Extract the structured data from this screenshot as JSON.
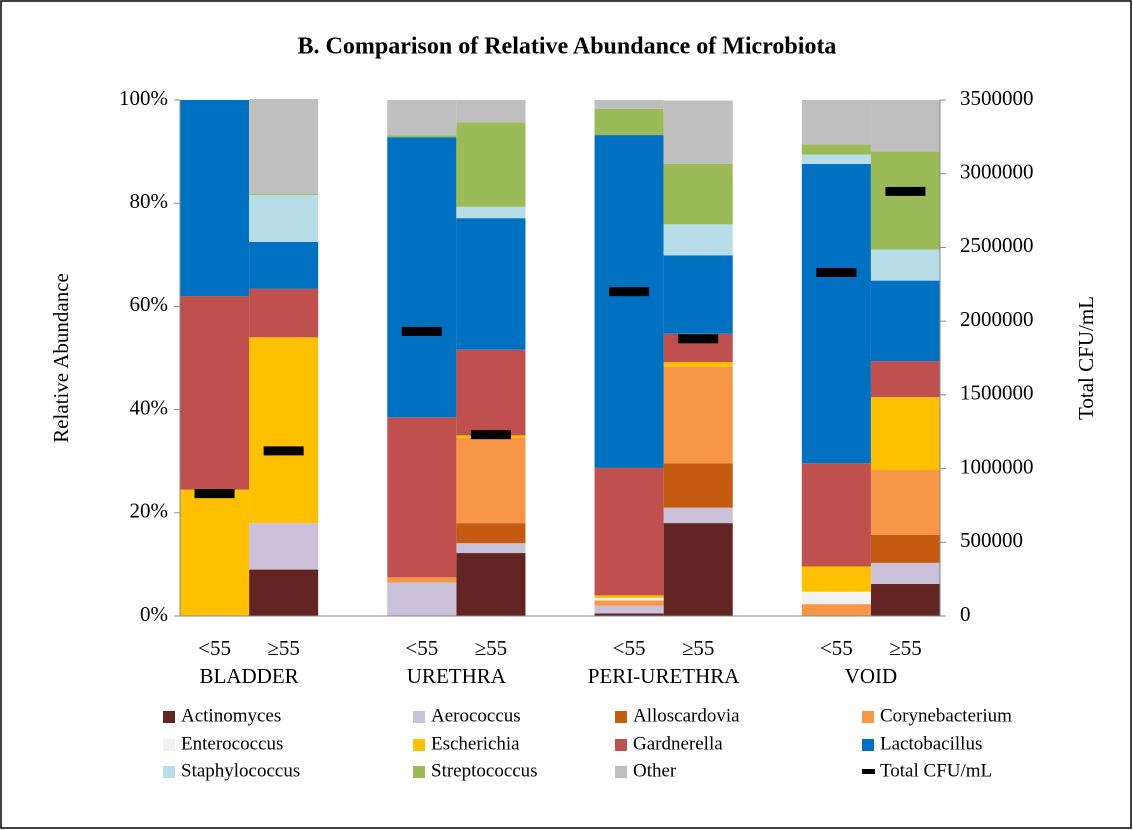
{
  "chart_data": {
    "type": "bar",
    "stacked": true,
    "title": "B. Comparison of Relative Abundance of Microbiota",
    "ylabel": "Relative Abundance",
    "y2label": "Total CFU/mL",
    "categories": [
      "<55",
      "≥55",
      null,
      "<55",
      "≥55",
      null,
      "<55",
      "≥55",
      null,
      "<55",
      "≥55"
    ],
    "groups": [
      "BLADDER",
      "URETHRA",
      "PERI-URETHRA",
      "VOID"
    ],
    "ylim": [
      0,
      100
    ],
    "yticks": [
      {
        "value": 0,
        "label": "0%"
      },
      {
        "value": 20,
        "label": "20%"
      },
      {
        "value": 40,
        "label": "40%"
      },
      {
        "value": 60,
        "label": "60%"
      },
      {
        "value": 80,
        "label": "80%"
      },
      {
        "value": 100,
        "label": "100%"
      }
    ],
    "y2lim": [
      0,
      3500000
    ],
    "y2ticks": [
      0,
      500000,
      1000000,
      1500000,
      2000000,
      2500000,
      3000000,
      3500000
    ],
    "legend": "bottom",
    "series": [
      {
        "name": "Actinomyces",
        "color": "#632523",
        "values": [
          0,
          9,
          null,
          0,
          12.2,
          null,
          0.5,
          18,
          null,
          0,
          6.2
        ]
      },
      {
        "name": "Aerococcus",
        "color": "#ccc1da",
        "values": [
          0,
          9,
          null,
          6.5,
          1.9,
          null,
          1.5,
          3,
          null,
          0,
          4.1
        ]
      },
      {
        "name": "Alloscardovia",
        "color": "#c55a11",
        "values": [
          0,
          0,
          null,
          0,
          3.9,
          null,
          0,
          8.6,
          null,
          0,
          5.4
        ]
      },
      {
        "name": "Corynebacterium",
        "color": "#f79646",
        "values": [
          0,
          0,
          null,
          1,
          16.5,
          null,
          1,
          18.7,
          null,
          2.3,
          12.6
        ]
      },
      {
        "name": "Enterococcus",
        "color": "#f2f2f2",
        "values": [
          0,
          0,
          null,
          0,
          0,
          null,
          0.5,
          0,
          null,
          2.4,
          0
        ]
      },
      {
        "name": "Escherichia",
        "color": "#ffc000",
        "values": [
          24.5,
          36,
          null,
          0,
          0.5,
          null,
          0.5,
          0.9,
          null,
          4.9,
          14.1
        ]
      },
      {
        "name": "Gardnerella",
        "color": "#c0504d",
        "values": [
          37.5,
          9.4,
          null,
          31,
          16.6,
          null,
          24.7,
          5.5,
          null,
          20,
          7
        ]
      },
      {
        "name": "Lactobacillus",
        "color": "#0070c0",
        "values": [
          38,
          9.1,
          null,
          54.3,
          25.5,
          null,
          64.5,
          15.2,
          null,
          58,
          15.6
        ]
      },
      {
        "name": "Staphylococcus",
        "color": "#b7dee8",
        "values": [
          0,
          9.1,
          null,
          0,
          2.2,
          null,
          0,
          6,
          null,
          1.8,
          6
        ]
      },
      {
        "name": "Streptococcus",
        "color": "#9bbb59",
        "values": [
          0,
          0.2,
          null,
          0.4,
          16.4,
          null,
          5.1,
          11.7,
          null,
          2,
          19
        ]
      },
      {
        "name": "Other",
        "color": "#bfbfbf",
        "values": [
          0,
          18.4,
          null,
          6.8,
          4.3,
          null,
          1.7,
          12.3,
          null,
          8.6,
          10
        ]
      },
      {
        "name": "Total CFU/mL",
        "color": "#000000",
        "axis": "y2",
        "type": "marker",
        "values": [
          830000,
          1120000,
          null,
          1930000,
          1230000,
          null,
          2200000,
          1880000,
          null,
          2330000,
          2880000
        ]
      }
    ]
  }
}
